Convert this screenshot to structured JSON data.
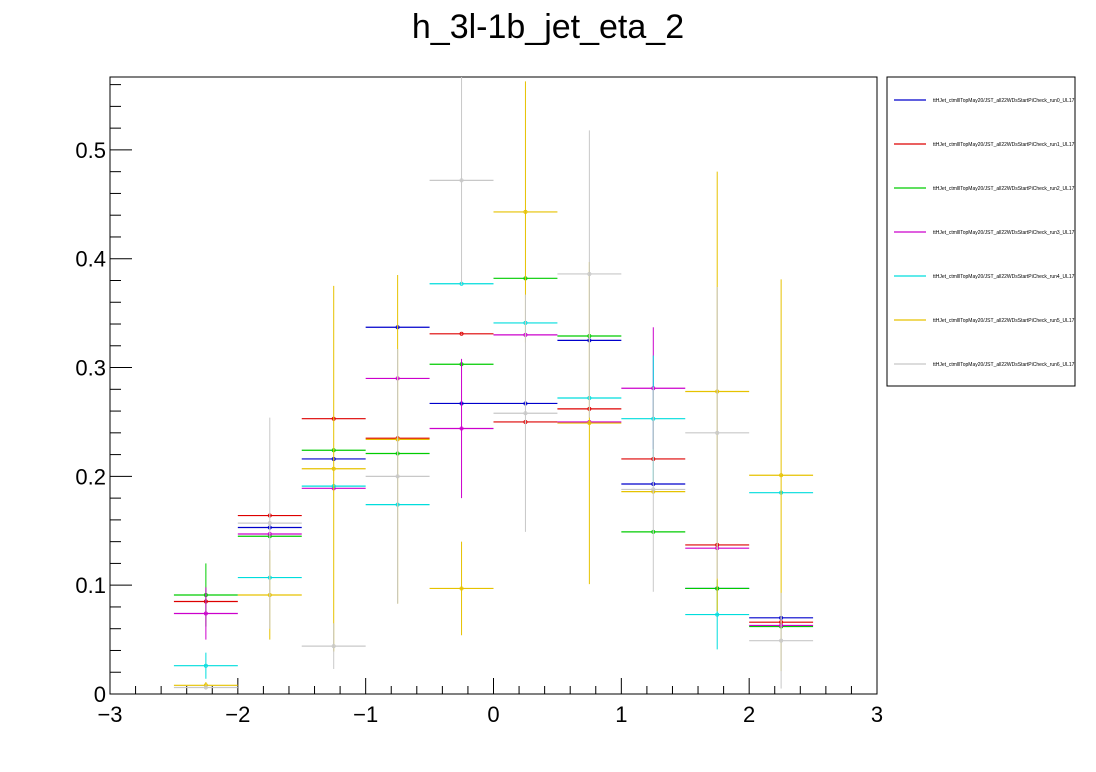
{
  "chart_data": {
    "type": "scatter",
    "title": "h_3l-1b_jet_eta_2",
    "xlabel": "",
    "ylabel": "",
    "xlim": [
      -3,
      3
    ],
    "ylim": [
      0,
      0.567
    ],
    "x_ticks": [
      -3,
      -2,
      -1,
      0,
      1,
      2,
      3
    ],
    "x_tick_labels": [
      "−3",
      "−2",
      "−1",
      "0",
      "1",
      "2",
      "3"
    ],
    "y_ticks": [
      0,
      0.1,
      0.2,
      0.3,
      0.4,
      0.5
    ],
    "y_tick_labels": [
      "0",
      "0.1",
      "0.2",
      "0.3",
      "0.4",
      "0.5"
    ],
    "bin_edges": [
      -2.5,
      -2.0,
      -1.5,
      -1.0,
      -0.5,
      0.0,
      0.5,
      1.0,
      1.5,
      2.0,
      2.5
    ],
    "x": [
      -2.25,
      -1.75,
      -1.25,
      -0.75,
      -0.25,
      0.25,
      0.75,
      1.25,
      1.75,
      2.25
    ],
    "legend_position": "right",
    "series": [
      {
        "name": "ttHJet_ctmlllTopMay20/JST_all22WDsStartPiCheck_run0_UL17",
        "color": "#0000cc",
        "values": [
          null,
          0.153,
          0.216,
          0.337,
          0.267,
          0.267,
          0.325,
          0.193,
          0.097,
          0.07
        ],
        "err": [
          null,
          0,
          0,
          0,
          0,
          0,
          0,
          0,
          0,
          0
        ]
      },
      {
        "name": "ttHJet_ctmlllTopMay20/JST_all22WDsStartPiCheck_run1_UL17",
        "color": "#dd0000",
        "values": [
          0.085,
          0.164,
          0.253,
          0.235,
          0.331,
          0.25,
          0.262,
          0.216,
          0.137,
          0.066
        ],
        "err": [
          0,
          0,
          0,
          0,
          0,
          0,
          0,
          0,
          0,
          0
        ]
      },
      {
        "name": "ttHJet_ctmlllTopMay20/JST_all22WDsStartPiCheck_run2_UL17",
        "color": "#00cc00",
        "values": [
          0.091,
          0.145,
          0.224,
          0.221,
          0.303,
          0.382,
          0.329,
          0.149,
          0.097,
          0.062
        ],
        "err": [
          0.029,
          0,
          0,
          0,
          0,
          0,
          0,
          0,
          0,
          0
        ]
      },
      {
        "name": "ttHJet_ctmlllTopMay20/JST_all22WDsStartPiCheck_run3_UL17",
        "color": "#cc00cc",
        "values": [
          0.074,
          0.147,
          0.189,
          0.29,
          0.244,
          0.33,
          0.25,
          0.281,
          0.134,
          0.063
        ],
        "err": [
          0.024,
          0,
          0,
          0,
          0.064,
          0,
          0,
          0.056,
          0,
          0
        ]
      },
      {
        "name": "ttHJet_ctmlllTopMay20/JST_all22WDsStartPiCheck_run4_UL17",
        "color": "#00dddd",
        "values": [
          0.026,
          0.107,
          0.191,
          0.174,
          0.377,
          0.341,
          0.272,
          0.253,
          0.073,
          0.185
        ],
        "err": [
          0.012,
          0,
          0,
          0,
          0,
          0,
          0,
          0.058,
          0.032,
          0
        ]
      },
      {
        "name": "ttHJet_ctmlllTopMay20/JST_all22WDsStartPiCheck_run5_UL17",
        "color": "#e6c200",
        "values": [
          0.008,
          0.091,
          0.207,
          0.234,
          0.097,
          0.443,
          0.249,
          0.186,
          0.278,
          0.201
        ],
        "err": [
          0.003,
          0.041,
          0.168,
          0.151,
          0.043,
          0.12,
          0.148,
          0,
          0.202,
          0.18
        ]
      },
      {
        "name": "ttHJet_ctmlllTopMay20/JST_all22WDsStartPiCheck_run6_UL17",
        "color": "#c8c8c8",
        "values": [
          0.006,
          0.157,
          0.044,
          0.2,
          0.472,
          0.258,
          0.386,
          0.188,
          0.24,
          0.049
        ],
        "err": [
          0.002,
          0.097,
          0.021,
          0.117,
          0.095,
          0.109,
          0.132,
          0.094,
          0.134,
          0.044
        ]
      }
    ]
  }
}
